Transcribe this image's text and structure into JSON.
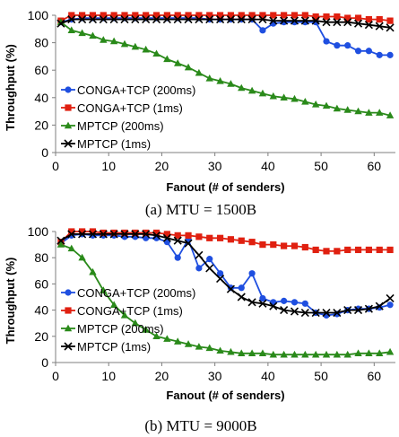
{
  "chart_data": [
    {
      "type": "line",
      "caption": "(a) MTU = 1500B",
      "xlabel": "Fanout (# of senders)",
      "ylabel": "Throughput (%)",
      "xlim": [
        0,
        64
      ],
      "ylim": [
        0,
        100
      ],
      "xticks": [
        0,
        10,
        20,
        30,
        40,
        50,
        60
      ],
      "yticks": [
        0,
        20,
        40,
        60,
        80,
        100
      ],
      "grid": false,
      "legend_position": "bottom-left",
      "x": [
        1,
        3,
        5,
        7,
        9,
        11,
        13,
        15,
        17,
        19,
        21,
        23,
        25,
        27,
        29,
        31,
        33,
        35,
        37,
        39,
        41,
        43,
        45,
        47,
        49,
        51,
        53,
        55,
        57,
        59,
        61,
        63
      ],
      "series": [
        {
          "name": "CONGA+TCP (200ms)",
          "color": "#1f4fe0",
          "marker": "circle",
          "values": [
            95,
            97,
            98,
            98,
            98,
            98,
            98,
            98,
            98,
            98,
            98,
            98,
            98,
            98,
            97,
            97,
            97,
            97,
            97,
            89,
            94,
            95,
            95,
            95,
            95,
            81,
            78,
            78,
            74,
            74,
            71,
            71
          ]
        },
        {
          "name": "CONGA+TCP (1ms)",
          "color": "#e02010",
          "marker": "square",
          "values": [
            96,
            100,
            100,
            100,
            100,
            100,
            100,
            100,
            100,
            100,
            100,
            100,
            100,
            100,
            100,
            100,
            100,
            100,
            100,
            100,
            100,
            100,
            100,
            100,
            99,
            99,
            99,
            98,
            98,
            97,
            97,
            96
          ]
        },
        {
          "name": "MPTCP (200ms)",
          "color": "#2a8a1a",
          "marker": "triangle",
          "values": [
            95,
            89,
            87,
            85,
            82,
            81,
            79,
            77,
            75,
            72,
            68,
            65,
            62,
            58,
            54,
            52,
            50,
            47,
            45,
            43,
            41,
            40,
            39,
            37,
            35,
            34,
            32,
            31,
            30,
            29,
            29,
            27
          ]
        },
        {
          "name": "MPTCP (1ms)",
          "color": "#000000",
          "marker": "x",
          "values": [
            94,
            97,
            97,
            97,
            97,
            97,
            97,
            97,
            97,
            97,
            97,
            97,
            97,
            97,
            97,
            97,
            97,
            97,
            97,
            97,
            96,
            96,
            96,
            96,
            96,
            95,
            95,
            95,
            94,
            93,
            92,
            91
          ]
        }
      ]
    },
    {
      "type": "line",
      "caption": "(b) MTU = 9000B",
      "xlabel": "Fanout (# of senders)",
      "ylabel": "Throughput (%)",
      "xlim": [
        0,
        64
      ],
      "ylim": [
        0,
        100
      ],
      "xticks": [
        0,
        10,
        20,
        30,
        40,
        50,
        60
      ],
      "yticks": [
        0,
        20,
        40,
        60,
        80,
        100
      ],
      "grid": false,
      "legend_position": "middle-left",
      "x": [
        1,
        3,
        5,
        7,
        9,
        11,
        13,
        15,
        17,
        19,
        21,
        23,
        25,
        27,
        29,
        31,
        33,
        35,
        37,
        39,
        41,
        43,
        45,
        47,
        49,
        51,
        53,
        55,
        57,
        59,
        61,
        63
      ],
      "series": [
        {
          "name": "CONGA+TCP (200ms)",
          "color": "#1f4fe0",
          "marker": "circle",
          "values": [
            91,
            97,
            98,
            97,
            97,
            97,
            96,
            96,
            95,
            95,
            92,
            80,
            94,
            72,
            79,
            68,
            57,
            57,
            68,
            49,
            46,
            47,
            46,
            45,
            38,
            36,
            37,
            40,
            41,
            41,
            42,
            44
          ]
        },
        {
          "name": "CONGA+TCP (1ms)",
          "color": "#e02010",
          "marker": "square",
          "values": [
            92,
            100,
            100,
            100,
            99,
            99,
            99,
            99,
            99,
            99,
            98,
            97,
            97,
            96,
            95,
            95,
            94,
            93,
            92,
            90,
            90,
            89,
            89,
            88,
            86,
            85,
            85,
            86,
            86,
            86,
            86,
            86
          ]
        },
        {
          "name": "MPTCP (200ms)",
          "color": "#2a8a1a",
          "marker": "triangle",
          "values": [
            90,
            87,
            80,
            69,
            55,
            44,
            36,
            30,
            25,
            20,
            18,
            16,
            14,
            12,
            11,
            9,
            8,
            7,
            7,
            7,
            6,
            6,
            6,
            6,
            6,
            6,
            6,
            6,
            7,
            7,
            7,
            8
          ]
        },
        {
          "name": "MPTCP (1ms)",
          "color": "#000000",
          "marker": "x",
          "values": [
            93,
            98,
            98,
            98,
            98,
            98,
            98,
            98,
            98,
            97,
            95,
            93,
            91,
            82,
            72,
            64,
            56,
            50,
            46,
            45,
            43,
            40,
            39,
            38,
            38,
            38,
            38,
            40,
            40,
            41,
            43,
            49
          ]
        }
      ]
    }
  ]
}
